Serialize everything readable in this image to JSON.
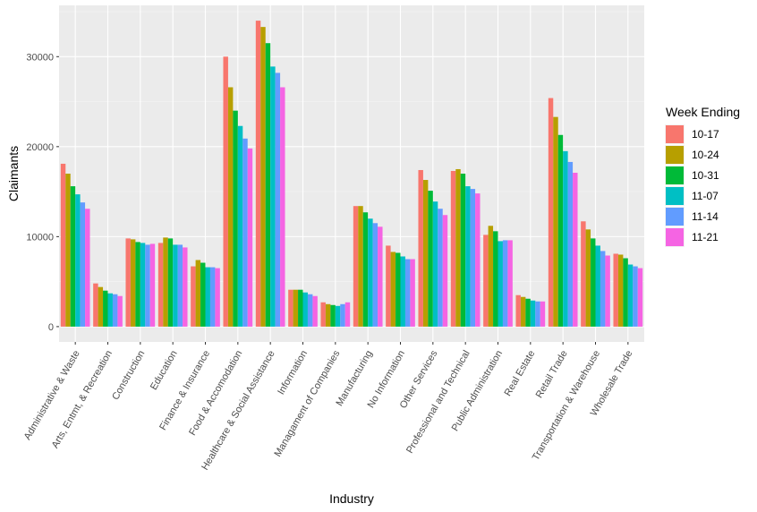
{
  "chart_data": {
    "type": "bar",
    "xlabel": "Industry",
    "ylabel": "Claimants",
    "ylim": [
      -1700,
      35700
    ],
    "yticks": [
      0,
      10000,
      20000,
      30000
    ],
    "ytick_labels": [
      "0",
      "10000",
      "20000",
      "30000"
    ],
    "grid": true,
    "legend": {
      "title": "Week Ending",
      "position": "right"
    },
    "categories": [
      "Administrative & Waste",
      "Arts, Entmt, & Recreation",
      "Construction",
      "Education",
      "Finance & Insurance",
      "Food & Accomodation",
      "Healthcare & Social Assistance",
      "Information",
      "Managament of Companies",
      "Manufacturing",
      "No Information",
      "Other Services",
      "Professional and Technical",
      "Public Administration",
      "Real Estate",
      "Retail Trade",
      "Transportation & Warehouse",
      "Wholesale Trade"
    ],
    "series": [
      {
        "name": "10-17",
        "color": "#F8766D",
        "values": [
          18100,
          4800,
          9800,
          9300,
          6700,
          30000,
          34000,
          4100,
          2700,
          13400,
          9000,
          17400,
          17300,
          10200,
          3500,
          25400,
          11700,
          8100
        ]
      },
      {
        "name": "10-24",
        "color": "#B79F00",
        "values": [
          17000,
          4400,
          9700,
          9900,
          7400,
          26600,
          33300,
          4100,
          2500,
          13400,
          8300,
          16300,
          17500,
          11200,
          3300,
          23300,
          10800,
          8000
        ]
      },
      {
        "name": "10-31",
        "color": "#00BA38",
        "values": [
          15600,
          4000,
          9400,
          9800,
          7100,
          24000,
          31500,
          4100,
          2400,
          12700,
          8200,
          15100,
          17000,
          10600,
          3100,
          21300,
          9800,
          7600
        ]
      },
      {
        "name": "11-07",
        "color": "#00BFC4",
        "values": [
          14700,
          3700,
          9300,
          9100,
          6600,
          22300,
          28900,
          3800,
          2300,
          12000,
          7800,
          13900,
          15600,
          9500,
          2900,
          19500,
          9000,
          6900
        ]
      },
      {
        "name": "11-14",
        "color": "#619CFF",
        "values": [
          13800,
          3600,
          9100,
          9100,
          6600,
          20900,
          28200,
          3600,
          2500,
          11500,
          7500,
          13100,
          15300,
          9600,
          2800,
          18300,
          8400,
          6700
        ]
      },
      {
        "name": "11-21",
        "color": "#F564E3",
        "values": [
          13100,
          3400,
          9200,
          8800,
          6500,
          19800,
          26600,
          3400,
          2700,
          11100,
          7500,
          12400,
          14800,
          9600,
          2800,
          17100,
          7900,
          6500
        ]
      }
    ]
  }
}
